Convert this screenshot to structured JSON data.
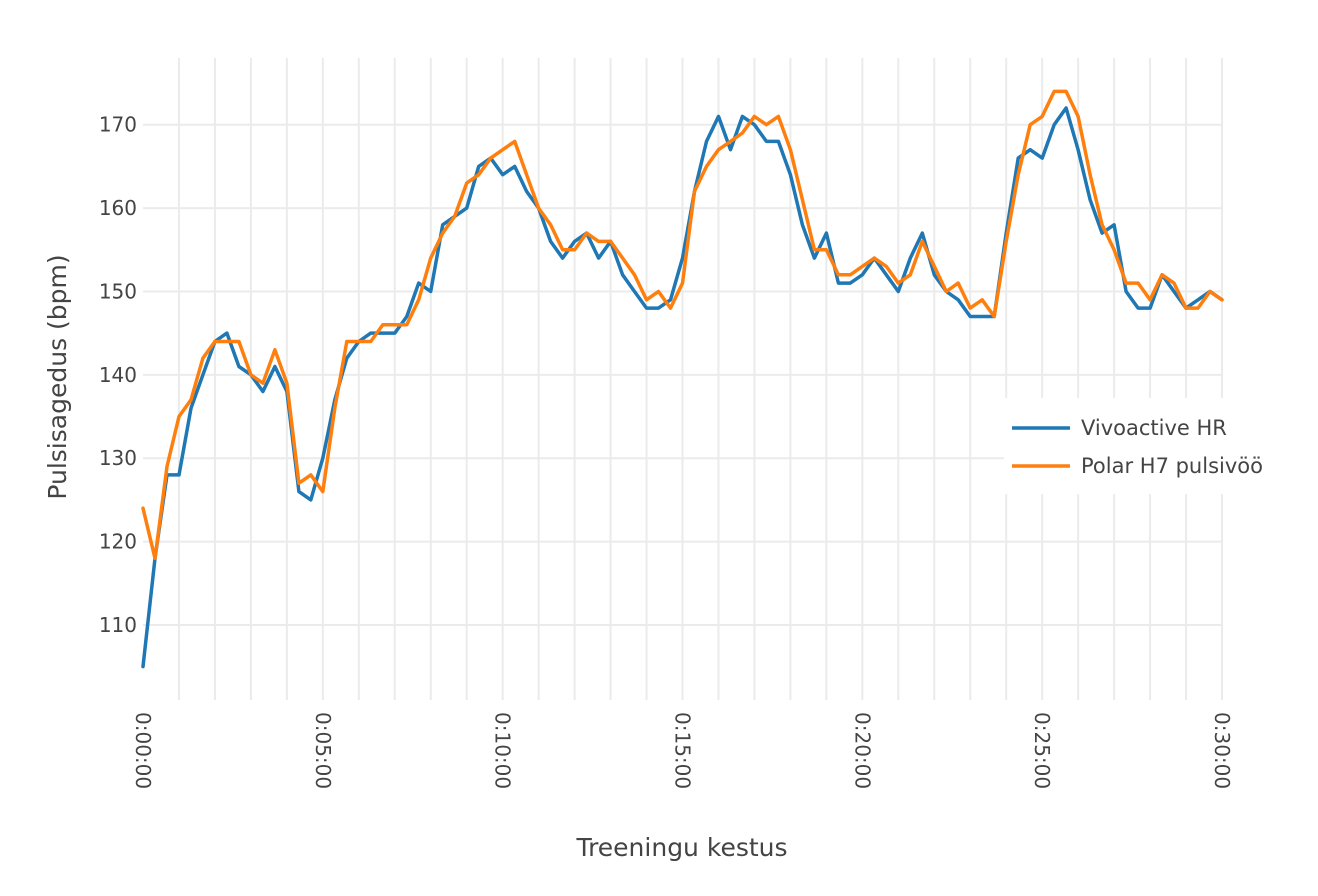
{
  "chart_data": {
    "type": "line",
    "xlabel": "Treeningu kestus",
    "ylabel": "Pulsisagedus (bpm)",
    "x_unit": "seconds",
    "xlim": [
      0,
      1800
    ],
    "ylim": [
      101,
      178
    ],
    "x_ticks": [
      0,
      300,
      600,
      900,
      1200,
      1500,
      1800
    ],
    "x_tick_labels": [
      "0:00:00",
      "0:05:00",
      "0:10:00",
      "0:15:00",
      "0:20:00",
      "0:25:00",
      "0:30:00"
    ],
    "y_ticks": [
      110,
      120,
      130,
      140,
      150,
      160,
      170
    ],
    "y_tick_labels": [
      "110",
      "120",
      "130",
      "140",
      "150",
      "160",
      "170"
    ],
    "grid": true,
    "legend_position": "right",
    "series": [
      {
        "name": "Vivoactive HR",
        "color": "#1f77b4",
        "x": [
          0,
          20,
          40,
          60,
          80,
          100,
          120,
          140,
          160,
          180,
          200,
          220,
          240,
          260,
          280,
          300,
          320,
          340,
          360,
          380,
          400,
          420,
          440,
          460,
          480,
          500,
          520,
          540,
          560,
          580,
          600,
          620,
          640,
          660,
          680,
          700,
          720,
          740,
          760,
          780,
          800,
          820,
          840,
          860,
          880,
          900,
          920,
          940,
          960,
          980,
          1000,
          1020,
          1040,
          1060,
          1080,
          1100,
          1120,
          1140,
          1160,
          1180,
          1200,
          1220,
          1240,
          1260,
          1280,
          1300,
          1320,
          1340,
          1360,
          1380,
          1400,
          1420,
          1440,
          1460,
          1480,
          1500,
          1520,
          1540,
          1560,
          1580,
          1600,
          1620,
          1640,
          1660,
          1680,
          1700,
          1720,
          1740,
          1760,
          1780,
          1800
        ],
        "y": [
          105,
          118,
          128,
          128,
          136,
          140,
          144,
          145,
          141,
          140,
          138,
          141,
          138,
          126,
          125,
          130,
          137,
          142,
          144,
          145,
          145,
          145,
          147,
          151,
          150,
          158,
          159,
          160,
          165,
          166,
          164,
          165,
          162,
          160,
          156,
          154,
          156,
          157,
          154,
          156,
          152,
          150,
          148,
          148,
          149,
          154,
          162,
          168,
          171,
          167,
          171,
          170,
          168,
          168,
          164,
          158,
          154,
          157,
          151,
          151,
          152,
          154,
          152,
          150,
          154,
          157,
          152,
          150,
          149,
          147,
          147,
          147,
          157,
          166,
          167,
          166,
          170,
          172,
          167,
          161,
          157,
          158,
          150,
          148,
          148,
          152,
          150,
          148,
          149,
          150,
          149
        ]
      },
      {
        "name": "Polar H7 pulsivöö",
        "color": "#ff7f0e",
        "x": [
          0,
          20,
          40,
          60,
          80,
          100,
          120,
          140,
          160,
          180,
          200,
          220,
          240,
          260,
          280,
          300,
          320,
          340,
          360,
          380,
          400,
          420,
          440,
          460,
          480,
          500,
          520,
          540,
          560,
          580,
          600,
          620,
          640,
          660,
          680,
          700,
          720,
          740,
          760,
          780,
          800,
          820,
          840,
          860,
          880,
          900,
          920,
          940,
          960,
          980,
          1000,
          1020,
          1040,
          1060,
          1080,
          1100,
          1120,
          1140,
          1160,
          1180,
          1200,
          1220,
          1240,
          1260,
          1280,
          1300,
          1320,
          1340,
          1360,
          1380,
          1400,
          1420,
          1440,
          1460,
          1480,
          1500,
          1520,
          1540,
          1560,
          1580,
          1600,
          1620,
          1640,
          1660,
          1680,
          1700,
          1720,
          1740,
          1760,
          1780,
          1800
        ],
        "y": [
          124,
          118,
          129,
          135,
          137,
          142,
          144,
          144,
          144,
          140,
          139,
          143,
          139,
          127,
          128,
          126,
          136,
          144,
          144,
          144,
          146,
          146,
          146,
          149,
          154,
          157,
          159,
          163,
          164,
          166,
          167,
          168,
          164,
          160,
          158,
          155,
          155,
          157,
          156,
          156,
          154,
          152,
          149,
          150,
          148,
          151,
          162,
          165,
          167,
          168,
          169,
          171,
          170,
          171,
          167,
          161,
          155,
          155,
          152,
          152,
          153,
          154,
          153,
          151,
          152,
          156,
          153,
          150,
          151,
          148,
          149,
          147,
          156,
          164,
          170,
          171,
          174,
          174,
          171,
          164,
          158,
          155,
          151,
          151,
          149,
          152,
          151,
          148,
          148,
          150,
          149
        ]
      }
    ]
  }
}
